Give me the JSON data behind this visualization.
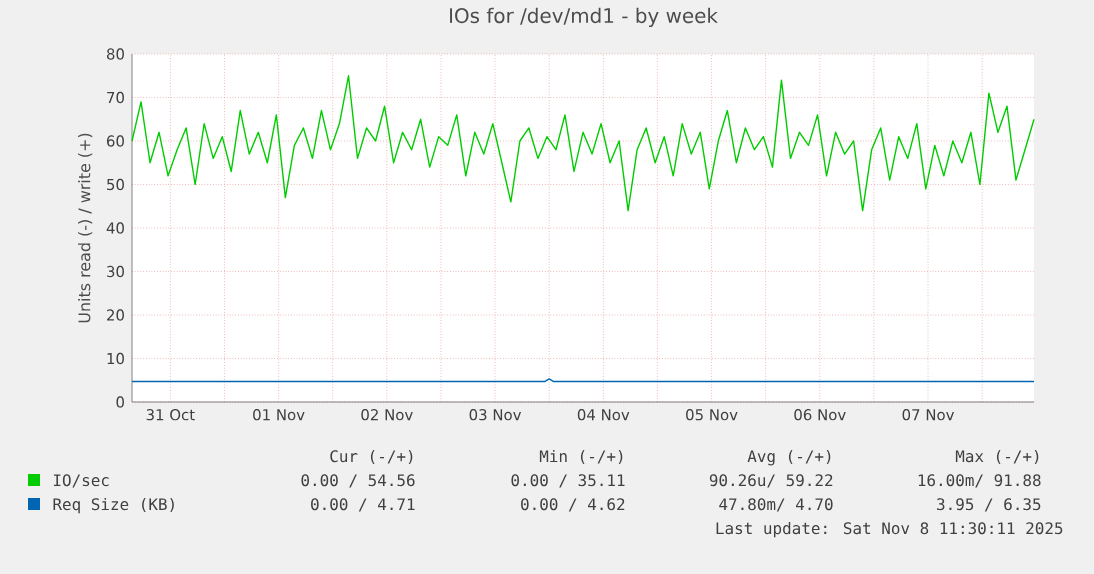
{
  "chart_data": {
    "type": "line",
    "title": "IOs for /dev/md1 - by week",
    "ylabel": "Units read (-) / write (+)",
    "x": [
      "2025-10-31T03:30",
      "2025-10-31T05:30",
      "2025-10-31T07:30",
      "2025-10-31T09:30",
      "2025-10-31T11:30",
      "2025-10-31T13:30",
      "2025-10-31T15:30",
      "2025-10-31T17:30",
      "2025-10-31T19:30",
      "2025-10-31T21:30",
      "2025-10-31T23:30",
      "2025-11-01T01:30",
      "2025-11-01T03:30",
      "2025-11-01T05:30",
      "2025-11-01T07:30",
      "2025-11-01T09:30",
      "2025-11-01T11:30",
      "2025-11-01T13:30",
      "2025-11-01T15:30",
      "2025-11-01T17:30",
      "2025-11-01T19:30",
      "2025-11-01T21:30",
      "2025-11-01T23:30",
      "2025-11-02T01:30",
      "2025-11-02T03:30",
      "2025-11-02T05:30",
      "2025-11-02T07:30",
      "2025-11-02T09:30",
      "2025-11-02T11:30",
      "2025-11-02T13:30",
      "2025-11-02T15:30",
      "2025-11-02T17:30",
      "2025-11-02T19:30",
      "2025-11-02T21:30",
      "2025-11-02T23:30",
      "2025-11-03T01:30",
      "2025-11-03T03:30",
      "2025-11-03T05:30",
      "2025-11-03T07:30",
      "2025-11-03T09:30",
      "2025-11-03T11:30",
      "2025-11-03T13:30",
      "2025-11-03T15:30",
      "2025-11-03T17:30",
      "2025-11-03T19:30",
      "2025-11-03T21:30",
      "2025-11-03T23:30",
      "2025-11-04T01:30",
      "2025-11-04T03:30",
      "2025-11-04T05:30",
      "2025-11-04T07:30",
      "2025-11-04T09:30",
      "2025-11-04T11:30",
      "2025-11-04T13:30",
      "2025-11-04T15:30",
      "2025-11-04T17:30",
      "2025-11-04T19:30",
      "2025-11-04T21:30",
      "2025-11-04T23:30",
      "2025-11-05T01:30",
      "2025-11-05T03:30",
      "2025-11-05T05:30",
      "2025-11-05T07:30",
      "2025-11-05T09:30",
      "2025-11-05T11:30",
      "2025-11-05T13:30",
      "2025-11-05T15:30",
      "2025-11-05T17:30",
      "2025-11-05T19:30",
      "2025-11-05T21:30",
      "2025-11-05T23:30",
      "2025-11-06T01:30",
      "2025-11-06T03:30",
      "2025-11-06T05:30",
      "2025-11-06T07:30",
      "2025-11-06T09:30",
      "2025-11-06T11:30",
      "2025-11-06T13:30",
      "2025-11-06T15:30",
      "2025-11-06T17:30",
      "2025-11-06T19:30",
      "2025-11-06T21:30",
      "2025-11-06T23:30",
      "2025-11-07T01:30",
      "2025-11-07T03:30",
      "2025-11-07T05:30",
      "2025-11-07T07:30",
      "2025-11-07T09:30",
      "2025-11-07T11:30",
      "2025-11-07T13:30",
      "2025-11-07T15:30",
      "2025-11-07T17:30",
      "2025-11-07T19:30",
      "2025-11-07T21:30",
      "2025-11-07T23:30",
      "2025-11-08T01:30",
      "2025-11-08T03:30",
      "2025-11-08T05:30",
      "2025-11-08T07:30",
      "2025-11-08T09:30",
      "2025-11-08T11:30"
    ],
    "series": [
      {
        "name": "IO/sec",
        "color": "#00cc00",
        "values": [
          60,
          69,
          55,
          62,
          52,
          58,
          63,
          50,
          64,
          56,
          61,
          53,
          67,
          57,
          62,
          55,
          66,
          47,
          59,
          63,
          56,
          67,
          58,
          64,
          75,
          56,
          63,
          60,
          68,
          55,
          62,
          58,
          65,
          54,
          61,
          59,
          66,
          52,
          62,
          57,
          64,
          55,
          46,
          60,
          63,
          56,
          61,
          58,
          66,
          53,
          62,
          57,
          64,
          55,
          60,
          44,
          58,
          63,
          55,
          61,
          52,
          64,
          57,
          62,
          49,
          60,
          67,
          55,
          63,
          58,
          61,
          54,
          74,
          56,
          62,
          59,
          66,
          52,
          62,
          57,
          60,
          44,
          58,
          63,
          51,
          61,
          56,
          64,
          49,
          59,
          52,
          60,
          55,
          62,
          50,
          71,
          62,
          68,
          51,
          58,
          65
        ]
      },
      {
        "name": "Req Size (KB)",
        "color": "#0066b3",
        "x": [
          "2025-10-31T03:30",
          "2025-11-03T23:00",
          "2025-11-04T00:00",
          "2025-11-04T01:00",
          "2025-11-08T11:30"
        ],
        "values": [
          4.7,
          4.7,
          5.3,
          4.7,
          4.7
        ]
      }
    ],
    "xlim": [
      "2025-10-31T03:30",
      "2025-11-08T11:30"
    ],
    "xticks": [
      {
        "value": "2025-10-31T12:00",
        "label": "31 Oct"
      },
      {
        "value": "2025-11-01T00:00",
        "label": null
      },
      {
        "value": "2025-11-01T12:00",
        "label": "01 Nov"
      },
      {
        "value": "2025-11-02T00:00",
        "label": null
      },
      {
        "value": "2025-11-02T12:00",
        "label": "02 Nov"
      },
      {
        "value": "2025-11-03T00:00",
        "label": null
      },
      {
        "value": "2025-11-03T12:00",
        "label": "03 Nov"
      },
      {
        "value": "2025-11-04T00:00",
        "label": null
      },
      {
        "value": "2025-11-04T12:00",
        "label": "04 Nov"
      },
      {
        "value": "2025-11-05T00:00",
        "label": null
      },
      {
        "value": "2025-11-05T12:00",
        "label": "05 Nov"
      },
      {
        "value": "2025-11-06T00:00",
        "label": null
      },
      {
        "value": "2025-11-06T12:00",
        "label": "06 Nov"
      },
      {
        "value": "2025-11-07T00:00",
        "label": null
      },
      {
        "value": "2025-11-07T12:00",
        "label": "07 Nov"
      },
      {
        "value": "2025-11-08T00:00",
        "label": null
      }
    ],
    "ylim": [
      0,
      80
    ],
    "yticks": [
      0,
      10,
      20,
      30,
      40,
      50,
      60,
      70,
      80
    ],
    "grid": true,
    "legend": "bottom",
    "marker": "none",
    "line_style": "solid",
    "annotations": [
      "Cur (-/+)",
      "Min (-/+)",
      "Avg (-/+)",
      "Max (-/+)",
      "0.00 / 54.56",
      "0.00 / 35.11",
      "90.26u/ 59.22",
      "16.00m/ 91.88",
      "0.00 /  4.71",
      "0.00 /  4.62",
      "47.80m/  4.70",
      "3.95 /  6.35",
      "Last update: Sat Nov  8 11:30:11 2025"
    ]
  }
}
